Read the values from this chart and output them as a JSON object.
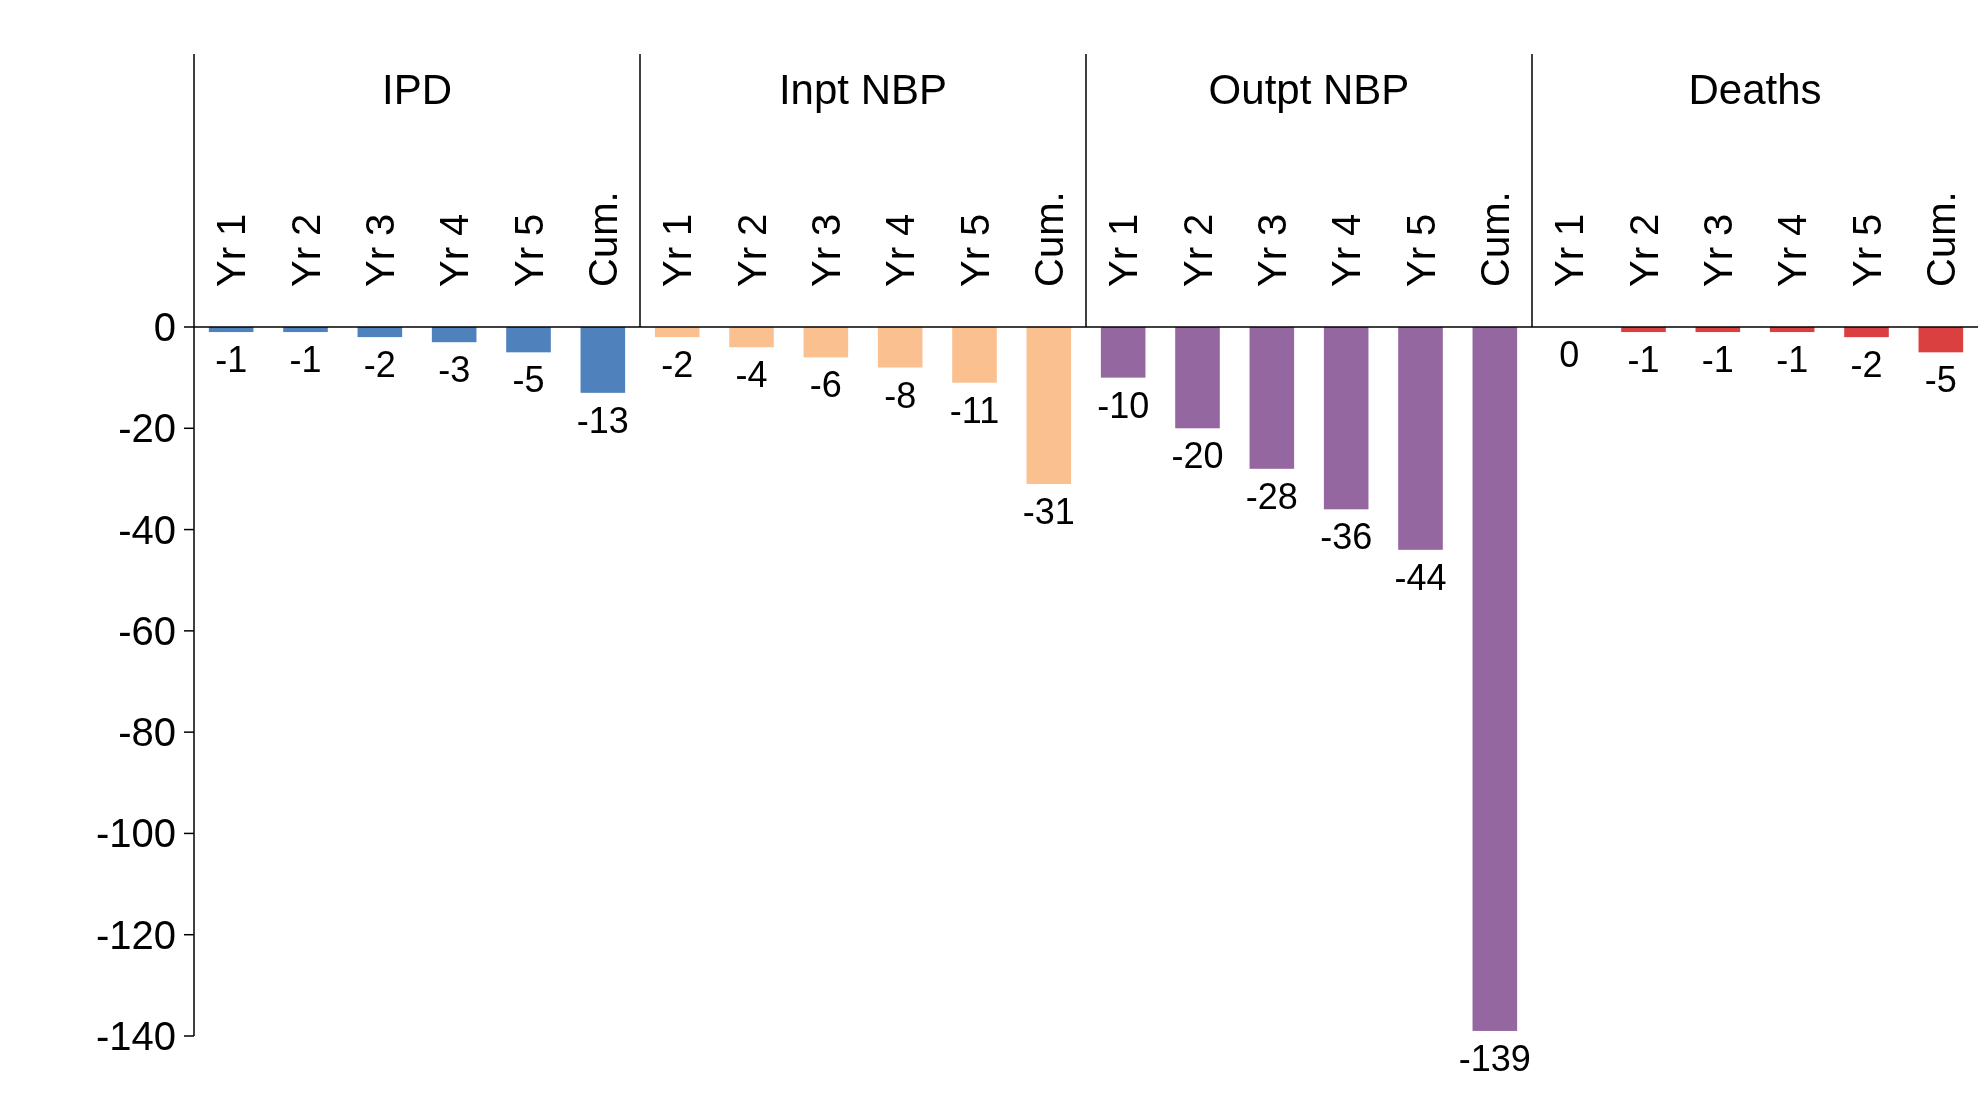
{
  "chart_data": {
    "type": "bar",
    "categories": [
      "Yr 1",
      "Yr 2",
      "Yr 3",
      "Yr 4",
      "Yr 5",
      "Cum.",
      "Yr 1",
      "Yr 2",
      "Yr 3",
      "Yr 4",
      "Yr 5",
      "Cum.",
      "Yr 1",
      "Yr 2",
      "Yr 3",
      "Yr 4",
      "Yr 5",
      "Cum.",
      "Yr 1",
      "Yr 2",
      "Yr 3",
      "Yr 4",
      "Yr 5",
      "Cum."
    ],
    "values": [
      -1,
      -1,
      -2,
      -3,
      -5,
      -13,
      -2,
      -4,
      -6,
      -8,
      -11,
      -31,
      -10,
      -20,
      -28,
      -36,
      -44,
      -139,
      0,
      -1,
      -1,
      -1,
      -2,
      -5
    ],
    "colors": [
      "#4f81bd",
      "#4f81bd",
      "#4f81bd",
      "#4f81bd",
      "#4f81bd",
      "#4f81bd",
      "#fac090",
      "#fac090",
      "#fac090",
      "#fac090",
      "#fac090",
      "#fac090",
      "#9467a0",
      "#9467a0",
      "#9467a0",
      "#9467a0",
      "#9467a0",
      "#9467a0",
      "#d9403f",
      "#d9403f",
      "#d9403f",
      "#d9403f",
      "#d9403f",
      "#d9403f"
    ],
    "annotations": [
      "IPD",
      "Inpt NBP",
      "Outpt NBP",
      "Deaths"
    ],
    "ylim": [
      -140,
      0
    ],
    "yticks": [
      0,
      -20,
      -40,
      -60,
      -80,
      -100,
      -120,
      -140
    ],
    "data_labels": true,
    "grid": false
  }
}
